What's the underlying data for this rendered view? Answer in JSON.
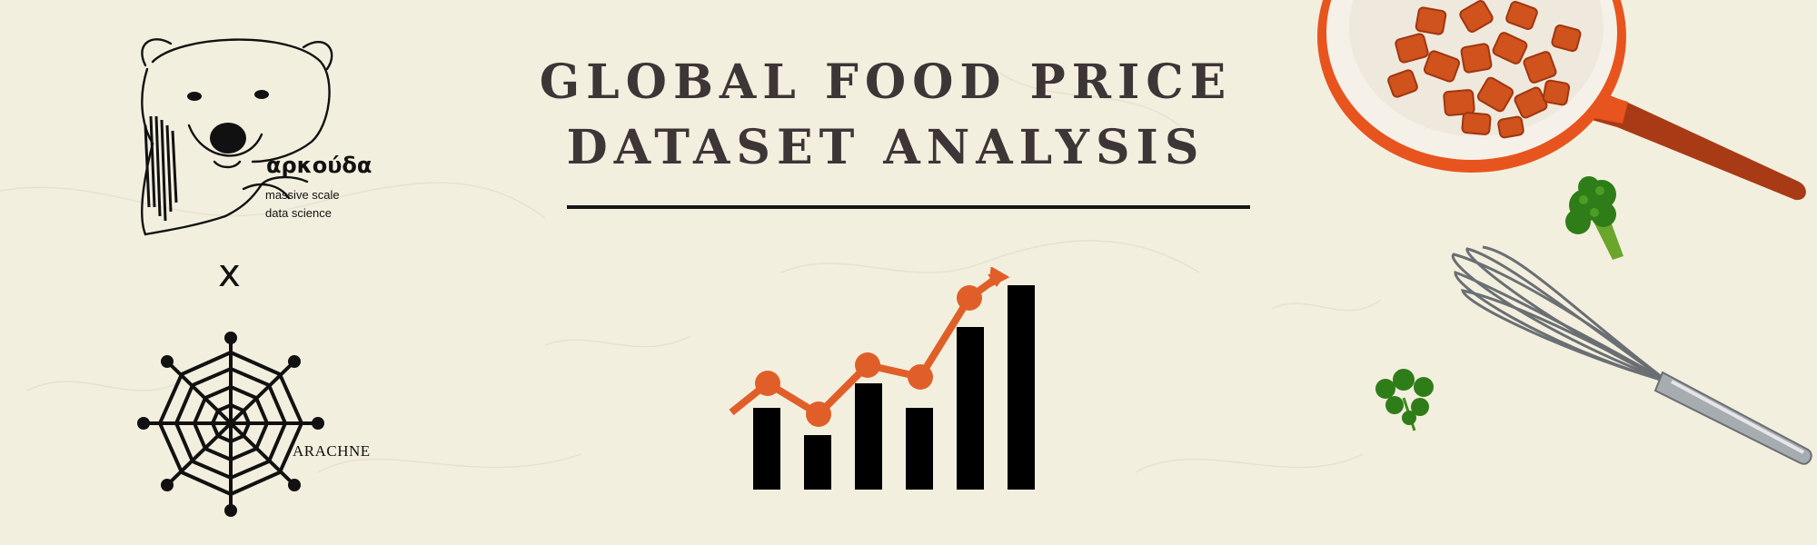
{
  "title": {
    "line1": "GLOBAL FOOD PRICE",
    "line2": "DATASET ANALYSIS"
  },
  "brand_left": {
    "name": "αρκούδα",
    "tagline_1": "massive scale",
    "tagline_2": "data science"
  },
  "separator": "x",
  "brand_bottom": {
    "name": "ARACHNE"
  },
  "colors": {
    "background": "#f3efdf",
    "title_text": "#3d3536",
    "accent_orange": "#e05f28",
    "ink": "#111111"
  },
  "icons": [
    "bear-logo-icon",
    "spider-web-logo-icon",
    "bar-trend-chart-icon",
    "frying-pan-icon",
    "broccoli-icon",
    "whisk-icon",
    "parsley-icon"
  ]
}
